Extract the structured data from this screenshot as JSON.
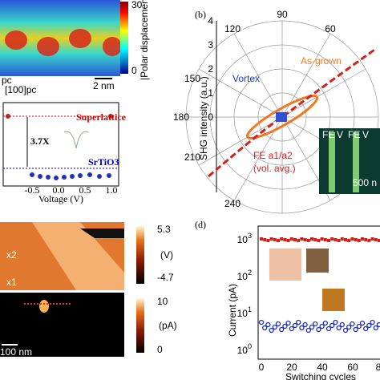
{
  "panel_a": {
    "colorbar_max": "30",
    "colorbar_min": "0",
    "colorbar_label": "|Polar displacement| (pm)",
    "axis_label_1": "pc",
    "axis_label_2": "[100]pc",
    "scale_bar": "2 nm",
    "plot": {
      "label_top": "Superlattice",
      "label_bottom": "SrTiO3",
      "ratio": "3.7X",
      "xticks": [
        "-0.5",
        "0.0",
        "0.5",
        "1.0"
      ],
      "xlabel": "Voltage (V)"
    }
  },
  "panel_b": {
    "label": "(b)",
    "ylabel": "SHG intensity (a.u.)",
    "angles": [
      "90",
      "120",
      "150",
      "180",
      "210",
      "240",
      "60"
    ],
    "radial_ticks": [
      "4",
      "3",
      "2",
      "1",
      "0"
    ],
    "legend": [
      "As-grown",
      "Vortex",
      "FE a1/a2",
      "(vol. avg.)"
    ],
    "inset": [
      "FE",
      "V",
      "FE",
      "V"
    ],
    "inset_scale": "500 n"
  },
  "panel_c": {
    "colorbar1_max": "5.3",
    "colorbar1_min": "-4.7",
    "colorbar1_unit": "(V)",
    "colorbar2_max": "10",
    "colorbar2_min": "0",
    "colorbar2_unit": "(pA)",
    "labels": [
      "x2",
      "x1"
    ],
    "scale_bar": "100 nm"
  },
  "panel_d": {
    "label": "(d)",
    "ylabel": "Current (pA)",
    "yticks": [
      {
        "base": "10",
        "exp": "3"
      },
      {
        "base": "10",
        "exp": "2"
      },
      {
        "base": "10",
        "exp": "1"
      },
      {
        "base": "10",
        "exp": "0"
      }
    ],
    "xticks": [
      "0",
      "20",
      "40",
      "60",
      "8"
    ],
    "xlabel": "Switching cycles"
  }
}
